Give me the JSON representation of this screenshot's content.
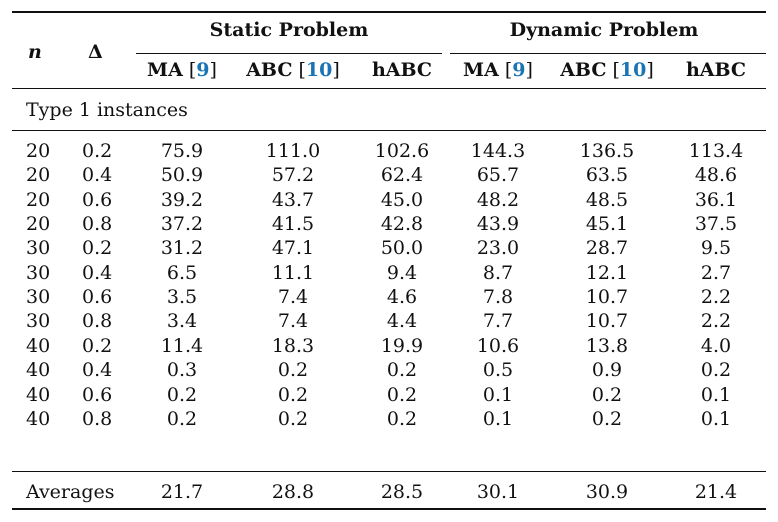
{
  "header": {
    "n_label": "n",
    "delta_label": "Δ",
    "group_static": "Static Problem",
    "group_dynamic": "Dynamic Problem",
    "cols": [
      {
        "name": "MA",
        "open": " [",
        "ref": "9",
        "close": "]"
      },
      {
        "name": "ABC",
        "open": " [",
        "ref": "10",
        "close": "]"
      },
      {
        "name": "hABC",
        "open": "",
        "ref": "",
        "close": ""
      },
      {
        "name": "MA",
        "open": " [",
        "ref": "9",
        "close": "]"
      },
      {
        "name": "ABC",
        "open": " [",
        "ref": "10",
        "close": "]"
      },
      {
        "name": "hABC",
        "open": "",
        "ref": "",
        "close": ""
      }
    ]
  },
  "section_label": "Type 1 instances",
  "rows": [
    [
      "20",
      "0.2",
      "75.9",
      "111.0",
      "102.6",
      "144.3",
      "136.5",
      "113.4"
    ],
    [
      "20",
      "0.4",
      "50.9",
      "57.2",
      "62.4",
      "65.7",
      "63.5",
      "48.6"
    ],
    [
      "20",
      "0.6",
      "39.2",
      "43.7",
      "45.0",
      "48.2",
      "48.5",
      "36.1"
    ],
    [
      "20",
      "0.8",
      "37.2",
      "41.5",
      "42.8",
      "43.9",
      "45.1",
      "37.5"
    ],
    [
      "30",
      "0.2",
      "31.2",
      "47.1",
      "50.0",
      "23.0",
      "28.7",
      "9.5"
    ],
    [
      "30",
      "0.4",
      "6.5",
      "11.1",
      "9.4",
      "8.7",
      "12.1",
      "2.7"
    ],
    [
      "30",
      "0.6",
      "3.5",
      "7.4",
      "4.6",
      "7.8",
      "10.7",
      "2.2"
    ],
    [
      "30",
      "0.8",
      "3.4",
      "7.4",
      "4.4",
      "7.7",
      "10.7",
      "2.2"
    ],
    [
      "40",
      "0.2",
      "11.4",
      "18.3",
      "19.9",
      "10.6",
      "13.8",
      "4.0"
    ],
    [
      "40",
      "0.4",
      "0.3",
      "0.2",
      "0.2",
      "0.5",
      "0.9",
      "0.2"
    ],
    [
      "40",
      "0.6",
      "0.2",
      "0.2",
      "0.2",
      "0.1",
      "0.2",
      "0.1"
    ],
    [
      "40",
      "0.8",
      "0.2",
      "0.2",
      "0.2",
      "0.1",
      "0.2",
      "0.1"
    ]
  ],
  "averages": {
    "label": "Averages",
    "values": [
      "21.7",
      "28.8",
      "28.5",
      "30.1",
      "30.9",
      "21.4"
    ]
  }
}
